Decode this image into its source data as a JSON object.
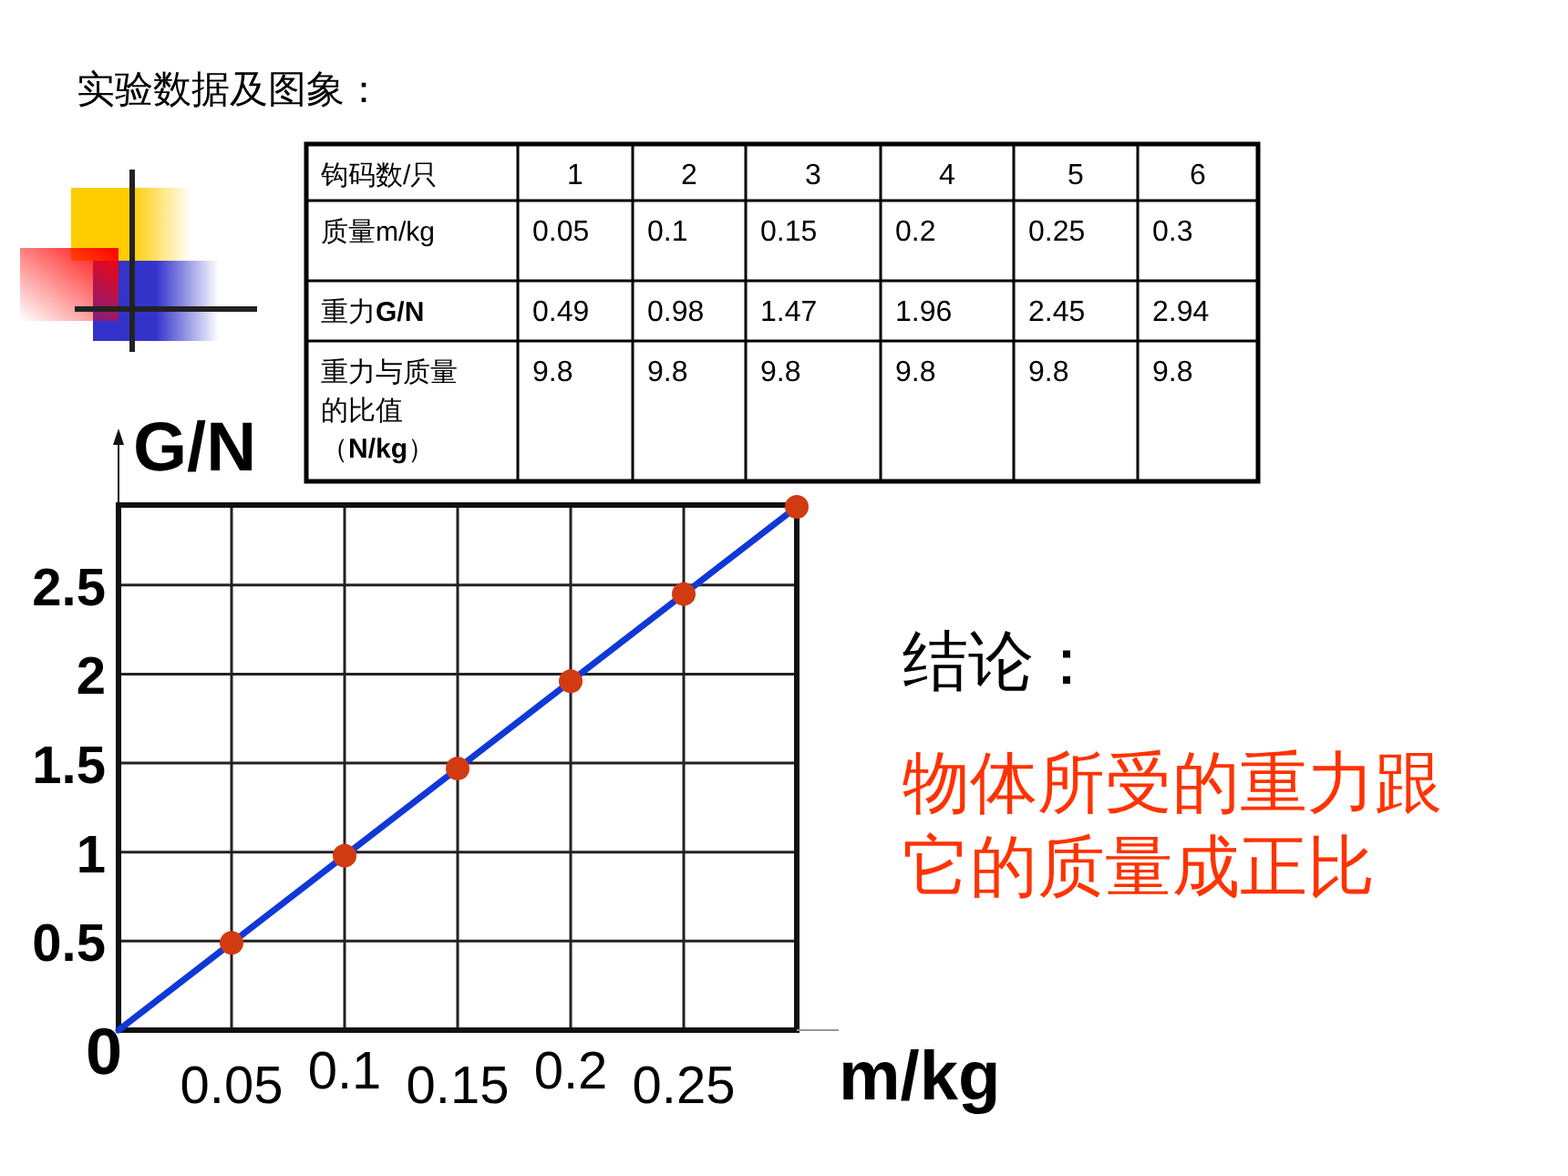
{
  "chart_data": [
    {
      "type": "heatmap",
      "title": "实验数据及图象：",
      "xlabel": "钩码数/只",
      "categories": [
        "1",
        "2",
        "3",
        "4",
        "5",
        "6"
      ],
      "y_categories": [
        "质量m/kg",
        "重力**G/N**",
        "重力与质量的比值（**N/kg**）"
      ],
      "data_labels": true,
      "cells": [
        [
          0.05,
          0.1,
          0.15,
          0.2,
          0.25,
          0.3
        ],
        [
          0.49,
          0.98,
          1.47,
          1.96,
          2.45,
          2.94
        ],
        [
          9.8,
          9.8,
          9.8,
          9.8,
          9.8,
          9.8
        ]
      ]
    },
    {
      "type": "scatter",
      "xlabel": "m/kg",
      "ylabel": "G/N",
      "xlim": [
        0,
        0.3
      ],
      "ylim": [
        0,
        2.95
      ],
      "xticks": [
        0.05,
        0.1,
        0.15,
        0.2,
        0.25
      ],
      "yticks": [
        0,
        0.5,
        1,
        1.5,
        2,
        2.5
      ],
      "grid": true,
      "series": [
        {
          "type": "scatter",
          "color": "#d23a12",
          "marker": "circle",
          "x": [
            0.05,
            0.1,
            0.15,
            0.2,
            0.25,
            0.3
          ],
          "values": [
            0.49,
            0.98,
            1.47,
            1.96,
            2.45,
            2.94
          ]
        },
        {
          "type": "line",
          "color": "#1038d8",
          "marker": "none",
          "x": [
            0,
            0.3
          ],
          "values": [
            0,
            2.94
          ]
        }
      ],
      "annotations": [
        "结论：",
        "物体所受的重力跟它的质量成正比"
      ]
    }
  ]
}
